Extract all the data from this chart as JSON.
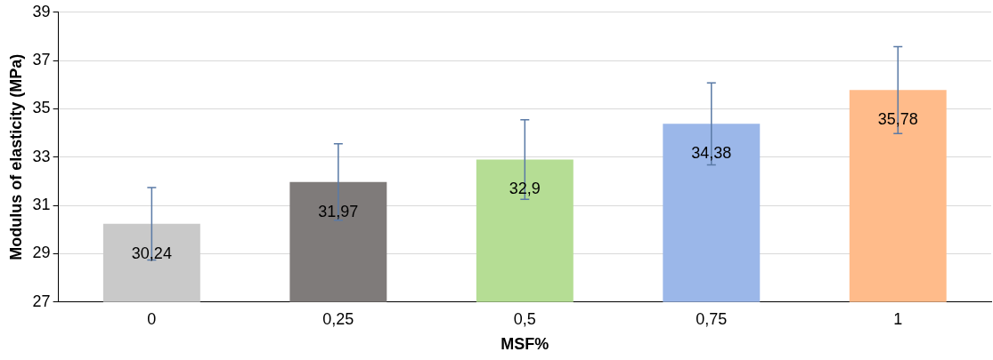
{
  "chart_data": {
    "type": "bar",
    "xlabel": "MSF%",
    "ylabel": "Modulus of elasticity (MPa)",
    "categories": [
      "0",
      "0,25",
      "0,5",
      "0,75",
      "1"
    ],
    "values": [
      30.24,
      31.97,
      32.9,
      34.38,
      35.78
    ],
    "colors": [
      "#c9c9c9",
      "#7f7b7a",
      "#b5dd94",
      "#9bb7e9",
      "#ffbb8a"
    ],
    "errors": [
      1.5,
      1.58,
      1.65,
      1.7,
      1.8
    ],
    "value_labels": [
      "30,24",
      "31,97",
      "32,9",
      "34,38",
      "35,78"
    ],
    "ylim": [
      27,
      39
    ],
    "yticks": [
      27,
      29,
      31,
      33,
      35,
      37,
      39
    ],
    "grid": "y",
    "legend": false
  }
}
